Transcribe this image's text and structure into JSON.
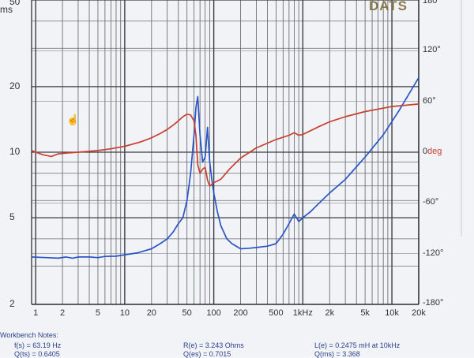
{
  "app": {
    "logo": "DATS",
    "cursor_icon": "hand-pointer-icon"
  },
  "chart_data": {
    "type": "line",
    "left_axis": {
      "scale": "log",
      "unit_label_partial": "ms",
      "ticks": [
        "50",
        "20",
        "10",
        "5",
        "2"
      ],
      "tick_values": [
        50,
        20,
        10,
        5,
        2
      ],
      "range": [
        2,
        50
      ]
    },
    "right_axis": {
      "unit_label": "deg",
      "ticks": [
        "180°",
        "120°",
        "60°",
        "0",
        "-60°",
        "-120°",
        "-180°"
      ],
      "tick_values": [
        180,
        120,
        60,
        0,
        -60,
        -120,
        -180
      ],
      "range": [
        -180,
        180
      ]
    },
    "x_axis": {
      "scale": "log",
      "range": [
        0.9,
        20000
      ],
      "ticks": [
        "1",
        "2",
        "5",
        "10",
        "20",
        "50",
        "100",
        "200",
        "500",
        "1kHz",
        "2k",
        "5k",
        "10k",
        "20k"
      ],
      "tick_values": [
        1,
        2,
        5,
        10,
        20,
        50,
        100,
        200,
        500,
        1000,
        2000,
        5000,
        10000,
        20000
      ]
    },
    "grid": true,
    "series": [
      {
        "color": "#2a55c8",
        "axis": "left",
        "x": [
          0.9,
          1.3,
          1.8,
          2.2,
          2.6,
          3,
          4,
          5,
          6,
          8,
          10,
          14,
          20,
          25,
          30,
          35,
          40,
          45,
          50,
          55,
          60,
          63,
          66,
          70,
          75,
          80,
          85,
          90,
          95,
          100,
          110,
          120,
          140,
          160,
          200,
          250,
          300,
          400,
          500,
          600,
          700,
          800,
          850,
          900,
          1000,
          1200,
          1500,
          2000,
          3000,
          5000,
          8000,
          12000,
          20000
        ],
        "y": [
          3.3,
          3.28,
          3.26,
          3.3,
          3.26,
          3.3,
          3.3,
          3.28,
          3.32,
          3.33,
          3.38,
          3.45,
          3.6,
          3.8,
          4.0,
          4.3,
          4.7,
          5.0,
          6.0,
          8.0,
          12.0,
          16.0,
          18.0,
          12.0,
          9.0,
          9.5,
          13.0,
          9.0,
          7.5,
          6.5,
          5.3,
          4.6,
          4.0,
          3.8,
          3.6,
          3.62,
          3.65,
          3.7,
          3.8,
          4.2,
          4.7,
          5.2,
          5.0,
          4.8,
          5.0,
          5.3,
          5.8,
          6.5,
          7.5,
          9.5,
          12.0,
          15.5,
          22.0
        ]
      },
      {
        "color": "#c8402e",
        "axis": "right",
        "x": [
          0.9,
          1.2,
          1.5,
          1.8,
          2.2,
          3,
          4,
          5,
          7,
          10,
          15,
          20,
          25,
          30,
          35,
          40,
          45,
          50,
          55,
          60,
          63,
          66,
          70,
          75,
          80,
          85,
          90,
          95,
          100,
          110,
          120,
          150,
          200,
          300,
          500,
          700,
          800,
          900,
          1000,
          1500,
          2000,
          3000,
          5000,
          10000,
          20000
        ],
        "y": [
          2,
          -3,
          -5,
          -2,
          -1,
          0,
          1,
          2,
          4,
          7,
          12,
          17,
          22,
          27,
          32,
          37,
          42,
          45,
          44,
          37,
          20,
          -15,
          -25,
          -20,
          -18,
          -33,
          -40,
          -38,
          -36,
          -34,
          -32,
          -20,
          -7,
          5,
          15,
          20,
          23,
          20,
          21,
          30,
          36,
          42,
          48,
          54,
          57
        ]
      }
    ]
  },
  "notes": {
    "heading": "Workbench Notes:",
    "fs": "f(s) = 63.19 Hz",
    "qts": "Q(ts) = 0.6405",
    "re": "R(e) = 3.243 Ohms",
    "qes": "Q(es) = 0.7015",
    "le": "L(e) = 0.2475 mH at 10kHz",
    "qms": "Q(ms) = 3.368"
  }
}
